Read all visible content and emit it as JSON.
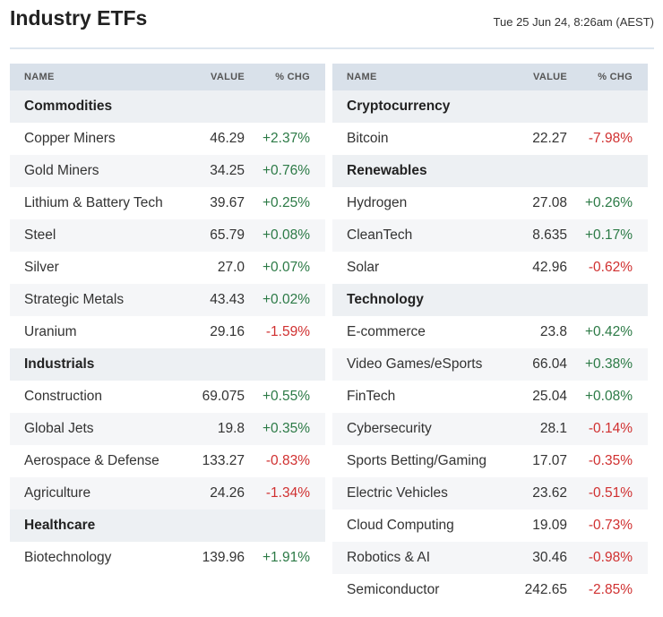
{
  "header": {
    "title": "Industry ETFs",
    "timestamp": "Tue 25 Jun 24, 8:26am (AEST)"
  },
  "colors": {
    "positive": "#2c7a46",
    "negative": "#d03030"
  },
  "columns": {
    "name": "NAME",
    "value": "VALUE",
    "chg": "% CHG"
  },
  "left_table": {
    "groups": [
      {
        "category": "Commodities",
        "rows": [
          {
            "name": "Copper Miners",
            "value": "46.29",
            "chg": "+2.37%",
            "dir": "up"
          },
          {
            "name": "Gold Miners",
            "value": "34.25",
            "chg": "+0.76%",
            "dir": "up"
          },
          {
            "name": "Lithium & Battery Tech",
            "value": "39.67",
            "chg": "+0.25%",
            "dir": "up"
          },
          {
            "name": "Steel",
            "value": "65.79",
            "chg": "+0.08%",
            "dir": "up"
          },
          {
            "name": "Silver",
            "value": "27.0",
            "chg": "+0.07%",
            "dir": "up"
          },
          {
            "name": "Strategic Metals",
            "value": "43.43",
            "chg": "+0.02%",
            "dir": "up"
          },
          {
            "name": "Uranium",
            "value": "29.16",
            "chg": "-1.59%",
            "dir": "down"
          }
        ]
      },
      {
        "category": "Industrials",
        "rows": [
          {
            "name": "Construction",
            "value": "69.075",
            "chg": "+0.55%",
            "dir": "up"
          },
          {
            "name": "Global Jets",
            "value": "19.8",
            "chg": "+0.35%",
            "dir": "up"
          },
          {
            "name": "Aerospace & Defense",
            "value": "133.27",
            "chg": "-0.83%",
            "dir": "down"
          },
          {
            "name": "Agriculture",
            "value": "24.26",
            "chg": "-1.34%",
            "dir": "down"
          }
        ]
      },
      {
        "category": "Healthcare",
        "rows": [
          {
            "name": "Biotechnology",
            "value": "139.96",
            "chg": "+1.91%",
            "dir": "up"
          }
        ]
      }
    ]
  },
  "right_table": {
    "groups": [
      {
        "category": "Cryptocurrency",
        "rows": [
          {
            "name": "Bitcoin",
            "value": "22.27",
            "chg": "-7.98%",
            "dir": "down"
          }
        ]
      },
      {
        "category": "Renewables",
        "rows": [
          {
            "name": "Hydrogen",
            "value": "27.08",
            "chg": "+0.26%",
            "dir": "up"
          },
          {
            "name": "CleanTech",
            "value": "8.635",
            "chg": "+0.17%",
            "dir": "up"
          },
          {
            "name": "Solar",
            "value": "42.96",
            "chg": "-0.62%",
            "dir": "down"
          }
        ]
      },
      {
        "category": "Technology",
        "rows": [
          {
            "name": "E-commerce",
            "value": "23.8",
            "chg": "+0.42%",
            "dir": "up"
          },
          {
            "name": "Video Games/eSports",
            "value": "66.04",
            "chg": "+0.38%",
            "dir": "up"
          },
          {
            "name": "FinTech",
            "value": "25.04",
            "chg": "+0.08%",
            "dir": "up"
          },
          {
            "name": "Cybersecurity",
            "value": "28.1",
            "chg": "-0.14%",
            "dir": "down"
          },
          {
            "name": "Sports Betting/Gaming",
            "value": "17.07",
            "chg": "-0.35%",
            "dir": "down"
          },
          {
            "name": "Electric Vehicles",
            "value": "23.62",
            "chg": "-0.51%",
            "dir": "down"
          },
          {
            "name": "Cloud Computing",
            "value": "19.09",
            "chg": "-0.73%",
            "dir": "down"
          },
          {
            "name": "Robotics & AI",
            "value": "30.46",
            "chg": "-0.98%",
            "dir": "down"
          },
          {
            "name": "Semiconductor",
            "value": "242.65",
            "chg": "-2.85%",
            "dir": "down"
          }
        ]
      }
    ]
  }
}
